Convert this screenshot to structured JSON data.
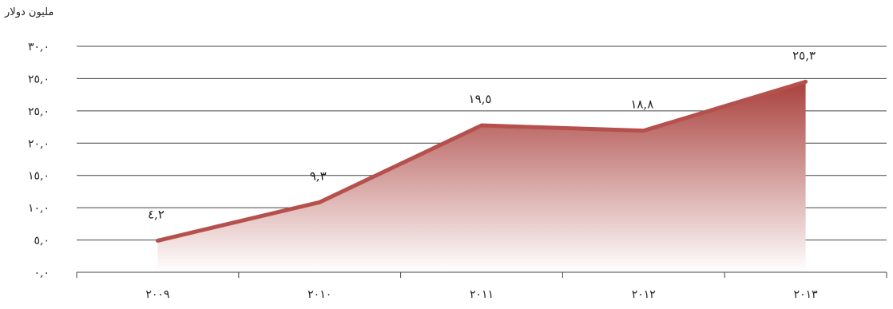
{
  "chart_data": {
    "type": "area",
    "unit_label": "مليون دولار",
    "y_tick_labels": [
      "٠,٠",
      "٥,٠",
      "١٠,٠",
      "١٥,٠",
      "٢٠,٠",
      "٢٥,٠",
      "٢٥,٠",
      "٣٠,٠"
    ],
    "categories": [
      "٢٠٠٩",
      "٢٠١٠",
      "٢٠١١",
      "٢٠١٢",
      "٢٠١٣"
    ],
    "values": [
      4.2,
      9.3,
      19.5,
      18.8,
      25.3
    ],
    "data_labels": [
      "٤,٢",
      "٩,٣",
      "١٩,٥",
      "١٨,٨",
      "٢٥,٣"
    ],
    "ylim": [
      0,
      30
    ],
    "grid": true,
    "colors": {
      "line": "#b5504c",
      "fill_top": "#a9413d",
      "fill_bottom": "#ffffff",
      "grid": "#444444"
    }
  }
}
